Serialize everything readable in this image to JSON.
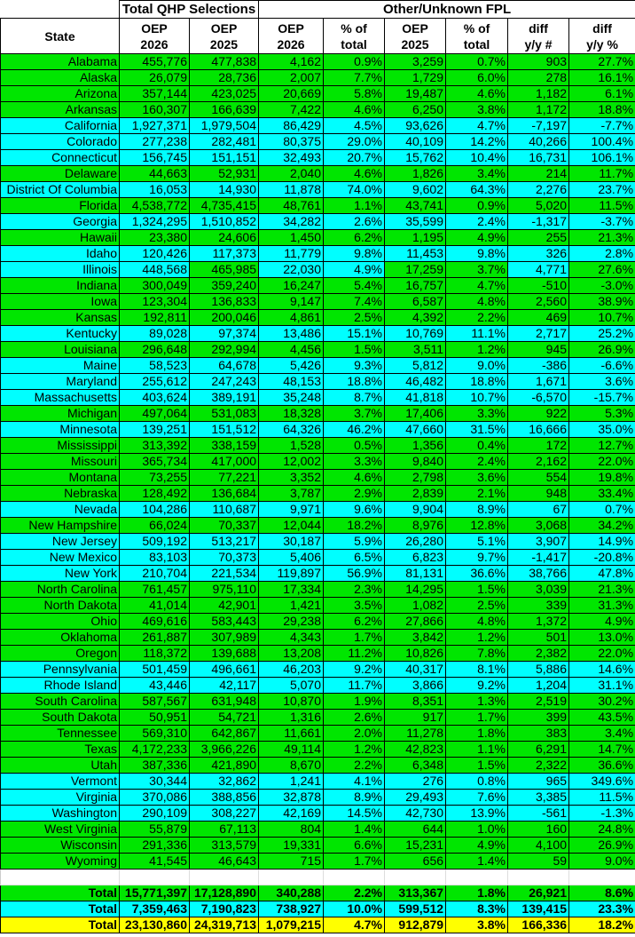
{
  "colors": {
    "green": "#00e600",
    "cyan": "#00ffff",
    "yellow": "#ffff00"
  },
  "header": {
    "group_total_qhp": "Total QHP Selections",
    "group_other_fpl": "Other/Unknown FPL",
    "state": "State",
    "cols": [
      [
        "OEP",
        "2026"
      ],
      [
        "OEP",
        "2025"
      ],
      [
        "OEP",
        "2026"
      ],
      [
        "% of",
        "total"
      ],
      [
        "OEP",
        "2025"
      ],
      [
        "% of",
        "total"
      ],
      [
        "diff",
        "y/y #"
      ],
      [
        "diff",
        "y/y %"
      ]
    ]
  },
  "rows": [
    {
      "state": "Alabama",
      "group": "green",
      "v": [
        "455,776",
        "477,838",
        "4,162",
        "0.9%",
        "3,259",
        "0.7%",
        "903",
        "27.7%"
      ]
    },
    {
      "state": "Alaska",
      "group": "green",
      "v": [
        "26,079",
        "28,736",
        "2,007",
        "7.7%",
        "1,729",
        "6.0%",
        "278",
        "16.1%"
      ]
    },
    {
      "state": "Arizona",
      "group": "green",
      "v": [
        "357,144",
        "423,025",
        "20,669",
        "5.8%",
        "19,487",
        "4.6%",
        "1,182",
        "6.1%"
      ]
    },
    {
      "state": "Arkansas",
      "group": "green",
      "v": [
        "160,307",
        "166,639",
        "7,422",
        "4.6%",
        "6,250",
        "3.8%",
        "1,172",
        "18.8%"
      ]
    },
    {
      "state": "California",
      "group": "cyan",
      "v": [
        "1,927,371",
        "1,979,504",
        "86,429",
        "4.5%",
        "93,626",
        "4.7%",
        "-7,197",
        "-7.7%"
      ]
    },
    {
      "state": "Colorado",
      "group": "cyan",
      "v": [
        "277,238",
        "282,481",
        "80,375",
        "29.0%",
        "40,109",
        "14.2%",
        "40,266",
        "100.4%"
      ]
    },
    {
      "state": "Connecticut",
      "group": "cyan",
      "v": [
        "156,745",
        "151,151",
        "32,493",
        "20.7%",
        "15,762",
        "10.4%",
        "16,731",
        "106.1%"
      ]
    },
    {
      "state": "Delaware",
      "group": "green",
      "v": [
        "44,663",
        "52,931",
        "2,040",
        "4.6%",
        "1,826",
        "3.4%",
        "214",
        "11.7%"
      ]
    },
    {
      "state": "District Of Columbia",
      "group": "cyan",
      "v": [
        "16,053",
        "14,930",
        "11,878",
        "74.0%",
        "9,602",
        "64.3%",
        "2,276",
        "23.7%"
      ]
    },
    {
      "state": "Florida",
      "group": "green",
      "v": [
        "4,538,772",
        "4,735,415",
        "48,761",
        "1.1%",
        "43,741",
        "0.9%",
        "5,020",
        "11.5%"
      ]
    },
    {
      "state": "Georgia",
      "group": "cyan",
      "v": [
        "1,324,295",
        "1,510,852",
        "34,282",
        "2.6%",
        "35,599",
        "2.4%",
        "-1,317",
        "-3.7%"
      ]
    },
    {
      "state": "Hawaii",
      "group": "green",
      "v": [
        "23,380",
        "24,606",
        "1,450",
        "6.2%",
        "1,195",
        "4.9%",
        "255",
        "21.3%"
      ]
    },
    {
      "state": "Idaho",
      "group": "cyan",
      "v": [
        "120,426",
        "117,373",
        "11,779",
        "9.8%",
        "11,453",
        "9.8%",
        "326",
        "2.8%"
      ]
    },
    {
      "state": "Illinois",
      "group": "cyan",
      "cell_groups": [
        "cyan",
        "cyan",
        "green",
        "cyan",
        "cyan",
        "green",
        "green",
        "cyan",
        "green"
      ],
      "v": [
        "448,568",
        "465,985",
        "22,030",
        "4.9%",
        "17,259",
        "3.7%",
        "4,771",
        "27.6%"
      ]
    },
    {
      "state": "Indiana",
      "group": "green",
      "v": [
        "300,049",
        "359,240",
        "16,247",
        "5.4%",
        "16,757",
        "4.7%",
        "-510",
        "-3.0%"
      ]
    },
    {
      "state": "Iowa",
      "group": "green",
      "v": [
        "123,304",
        "136,833",
        "9,147",
        "7.4%",
        "6,587",
        "4.8%",
        "2,560",
        "38.9%"
      ]
    },
    {
      "state": "Kansas",
      "group": "green",
      "v": [
        "192,811",
        "200,046",
        "4,861",
        "2.5%",
        "4,392",
        "2.2%",
        "469",
        "10.7%"
      ]
    },
    {
      "state": "Kentucky",
      "group": "cyan",
      "v": [
        "89,028",
        "97,374",
        "13,486",
        "15.1%",
        "10,769",
        "11.1%",
        "2,717",
        "25.2%"
      ]
    },
    {
      "state": "Louisiana",
      "group": "green",
      "v": [
        "296,648",
        "292,994",
        "4,456",
        "1.5%",
        "3,511",
        "1.2%",
        "945",
        "26.9%"
      ]
    },
    {
      "state": "Maine",
      "group": "cyan",
      "v": [
        "58,523",
        "64,678",
        "5,426",
        "9.3%",
        "5,812",
        "9.0%",
        "-386",
        "-6.6%"
      ]
    },
    {
      "state": "Maryland",
      "group": "cyan",
      "v": [
        "255,612",
        "247,243",
        "48,153",
        "18.8%",
        "46,482",
        "18.8%",
        "1,671",
        "3.6%"
      ]
    },
    {
      "state": "Massachusetts",
      "group": "cyan",
      "v": [
        "403,624",
        "389,191",
        "35,248",
        "8.7%",
        "41,818",
        "10.7%",
        "-6,570",
        "-15.7%"
      ]
    },
    {
      "state": "Michigan",
      "group": "green",
      "v": [
        "497,064",
        "531,083",
        "18,328",
        "3.7%",
        "17,406",
        "3.3%",
        "922",
        "5.3%"
      ]
    },
    {
      "state": "Minnesota",
      "group": "cyan",
      "v": [
        "139,251",
        "151,512",
        "64,326",
        "46.2%",
        "47,660",
        "31.5%",
        "16,666",
        "35.0%"
      ]
    },
    {
      "state": "Mississippi",
      "group": "green",
      "v": [
        "313,392",
        "338,159",
        "1,528",
        "0.5%",
        "1,356",
        "0.4%",
        "172",
        "12.7%"
      ]
    },
    {
      "state": "Missouri",
      "group": "green",
      "v": [
        "365,734",
        "417,000",
        "12,002",
        "3.3%",
        "9,840",
        "2.4%",
        "2,162",
        "22.0%"
      ]
    },
    {
      "state": "Montana",
      "group": "green",
      "v": [
        "73,255",
        "77,221",
        "3,352",
        "4.6%",
        "2,798",
        "3.6%",
        "554",
        "19.8%"
      ]
    },
    {
      "state": "Nebraska",
      "group": "green",
      "v": [
        "128,492",
        "136,684",
        "3,787",
        "2.9%",
        "2,839",
        "2.1%",
        "948",
        "33.4%"
      ]
    },
    {
      "state": "Nevada",
      "group": "cyan",
      "v": [
        "104,286",
        "110,687",
        "9,971",
        "9.6%",
        "9,904",
        "8.9%",
        "67",
        "0.7%"
      ]
    },
    {
      "state": "New Hampshire",
      "group": "green",
      "v": [
        "66,024",
        "70,337",
        "12,044",
        "18.2%",
        "8,976",
        "12.8%",
        "3,068",
        "34.2%"
      ]
    },
    {
      "state": "New Jersey",
      "group": "cyan",
      "v": [
        "509,192",
        "513,217",
        "30,187",
        "5.9%",
        "26,280",
        "5.1%",
        "3,907",
        "14.9%"
      ]
    },
    {
      "state": "New Mexico",
      "group": "cyan",
      "v": [
        "83,103",
        "70,373",
        "5,406",
        "6.5%",
        "6,823",
        "9.7%",
        "-1,417",
        "-20.8%"
      ]
    },
    {
      "state": "New York",
      "group": "cyan",
      "v": [
        "210,704",
        "221,534",
        "119,897",
        "56.9%",
        "81,131",
        "36.6%",
        "38,766",
        "47.8%"
      ]
    },
    {
      "state": "North Carolina",
      "group": "green",
      "v": [
        "761,457",
        "975,110",
        "17,334",
        "2.3%",
        "14,295",
        "1.5%",
        "3,039",
        "21.3%"
      ]
    },
    {
      "state": "North Dakota",
      "group": "green",
      "v": [
        "41,014",
        "42,901",
        "1,421",
        "3.5%",
        "1,082",
        "2.5%",
        "339",
        "31.3%"
      ]
    },
    {
      "state": "Ohio",
      "group": "green",
      "v": [
        "469,616",
        "583,443",
        "29,238",
        "6.2%",
        "27,866",
        "4.8%",
        "1,372",
        "4.9%"
      ]
    },
    {
      "state": "Oklahoma",
      "group": "green",
      "v": [
        "261,887",
        "307,989",
        "4,343",
        "1.7%",
        "3,842",
        "1.2%",
        "501",
        "13.0%"
      ]
    },
    {
      "state": "Oregon",
      "group": "green",
      "v": [
        "118,372",
        "139,688",
        "13,208",
        "11.2%",
        "10,826",
        "7.8%",
        "2,382",
        "22.0%"
      ]
    },
    {
      "state": "Pennsylvania",
      "group": "cyan",
      "v": [
        "501,459",
        "496,661",
        "46,203",
        "9.2%",
        "40,317",
        "8.1%",
        "5,886",
        "14.6%"
      ]
    },
    {
      "state": "Rhode Island",
      "group": "cyan",
      "v": [
        "43,446",
        "42,117",
        "5,070",
        "11.7%",
        "3,866",
        "9.2%",
        "1,204",
        "31.1%"
      ]
    },
    {
      "state": "South Carolina",
      "group": "green",
      "v": [
        "587,567",
        "631,948",
        "10,870",
        "1.9%",
        "8,351",
        "1.3%",
        "2,519",
        "30.2%"
      ]
    },
    {
      "state": "South Dakota",
      "group": "green",
      "v": [
        "50,951",
        "54,721",
        "1,316",
        "2.6%",
        "917",
        "1.7%",
        "399",
        "43.5%"
      ]
    },
    {
      "state": "Tennessee",
      "group": "green",
      "v": [
        "569,310",
        "642,867",
        "11,661",
        "2.0%",
        "11,278",
        "1.8%",
        "383",
        "3.4%"
      ]
    },
    {
      "state": "Texas",
      "group": "green",
      "v": [
        "4,172,233",
        "3,966,226",
        "49,114",
        "1.2%",
        "42,823",
        "1.1%",
        "6,291",
        "14.7%"
      ]
    },
    {
      "state": "Utah",
      "group": "green",
      "v": [
        "387,336",
        "421,890",
        "8,670",
        "2.2%",
        "6,348",
        "1.5%",
        "2,322",
        "36.6%"
      ]
    },
    {
      "state": "Vermont",
      "group": "cyan",
      "v": [
        "30,344",
        "32,862",
        "1,241",
        "4.1%",
        "276",
        "0.8%",
        "965",
        "349.6%"
      ]
    },
    {
      "state": "Virginia",
      "group": "cyan",
      "v": [
        "370,086",
        "388,856",
        "32,878",
        "8.9%",
        "29,493",
        "7.6%",
        "3,385",
        "11.5%"
      ]
    },
    {
      "state": "Washington",
      "group": "cyan",
      "v": [
        "290,109",
        "308,227",
        "42,169",
        "14.5%",
        "42,730",
        "13.9%",
        "-561",
        "-1.3%"
      ]
    },
    {
      "state": "West Virginia",
      "group": "green",
      "v": [
        "55,879",
        "67,113",
        "804",
        "1.4%",
        "644",
        "1.0%",
        "160",
        "24.8%"
      ]
    },
    {
      "state": "Wisconsin",
      "group": "green",
      "v": [
        "291,336",
        "313,579",
        "19,331",
        "6.6%",
        "15,231",
        "4.9%",
        "4,100",
        "26.9%"
      ]
    },
    {
      "state": "Wyoming",
      "group": "green",
      "v": [
        "41,545",
        "46,643",
        "715",
        "1.7%",
        "656",
        "1.4%",
        "59",
        "9.0%"
      ]
    }
  ],
  "totals": [
    {
      "state": "Total",
      "group": "green",
      "v": [
        "15,771,397",
        "17,128,890",
        "340,288",
        "2.2%",
        "313,367",
        "1.8%",
        "26,921",
        "8.6%"
      ]
    },
    {
      "state": "Total",
      "group": "cyan",
      "v": [
        "7,359,463",
        "7,190,823",
        "738,927",
        "10.0%",
        "599,512",
        "8.3%",
        "139,415",
        "23.3%"
      ]
    },
    {
      "state": "Total",
      "group": "yellow",
      "v": [
        "23,130,860",
        "24,319,713",
        "1,079,215",
        "4.7%",
        "912,879",
        "3.8%",
        "166,336",
        "18.2%"
      ]
    }
  ]
}
